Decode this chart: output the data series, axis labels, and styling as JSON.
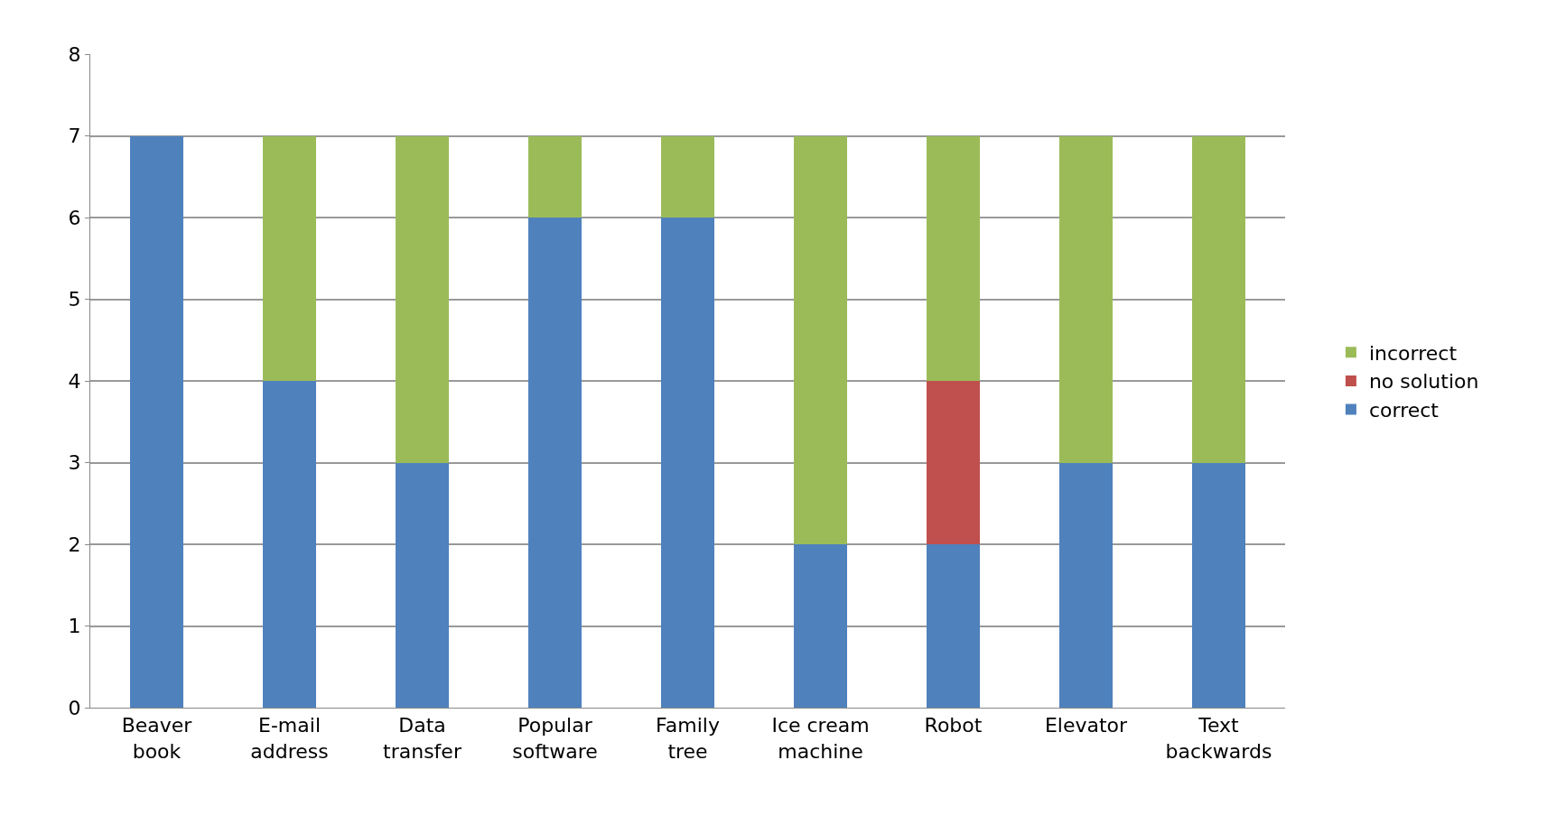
{
  "chart_data": {
    "type": "bar",
    "stacked": true,
    "categories": [
      "Beaver\nbook",
      "E-mail\naddress",
      "Data\ntransfer",
      "Popular\nsoftware",
      "Family\ntree",
      "Ice cream\nmachine",
      "Robot",
      "Elevator",
      "Text\nbackwards"
    ],
    "series": [
      {
        "name": "correct",
        "color": "#4f81bd",
        "values": [
          7,
          4,
          3,
          6,
          6,
          2,
          2,
          3,
          3
        ]
      },
      {
        "name": "no solution",
        "color": "#c0504d",
        "values": [
          0,
          0,
          0,
          0,
          0,
          0,
          2,
          0,
          0
        ]
      },
      {
        "name": "incorrect",
        "color": "#9bbb59",
        "values": [
          0,
          3,
          4,
          1,
          1,
          5,
          3,
          4,
          4
        ]
      }
    ],
    "ylim": [
      0,
      8
    ],
    "yticks": [
      0,
      1,
      2,
      3,
      4,
      5,
      6,
      7,
      8
    ],
    "grid": "y",
    "legend": "right"
  }
}
